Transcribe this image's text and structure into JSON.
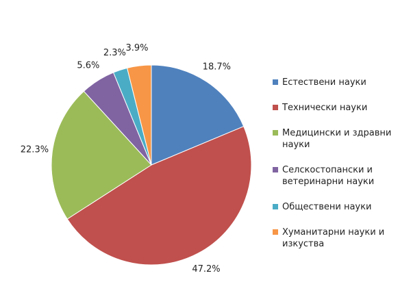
{
  "chart_data": {
    "type": "pie",
    "categories": [
      "Естествени науки",
      "Технически науки",
      "Медицински и здравни науки",
      "Селскостопански и ветеринарни науки",
      "Обществени науки",
      "Хуманитарни науки и изкуства"
    ],
    "values": [
      18.7,
      47.2,
      22.3,
      5.6,
      2.3,
      3.9
    ],
    "value_labels": [
      "18.7%",
      "47.2%",
      "22.3%",
      "5.6%",
      "2.3%",
      "3.9%"
    ],
    "colors": [
      "#4f81bd",
      "#c0504d",
      "#9bbb59",
      "#8064a2",
      "#4bacc6",
      "#f79646"
    ],
    "legend": "right"
  }
}
